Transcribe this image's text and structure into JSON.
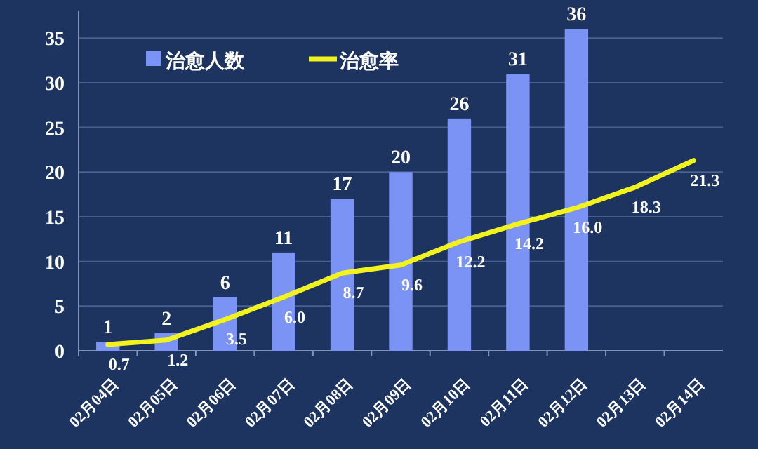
{
  "chart_data": {
    "type": "bar",
    "categories": [
      "02月04日",
      "02月05日",
      "02月06日",
      "02月07日",
      "02月08日",
      "02月09日",
      "02月10日",
      "02月11日",
      "02月12日",
      "02月13日",
      "02月14日"
    ],
    "series": [
      {
        "name": "治愈人数",
        "color": "#7b93f5",
        "values": [
          1,
          2,
          6,
          11,
          17,
          20,
          26,
          31,
          36,
          null,
          null
        ]
      },
      {
        "name": "治愈率",
        "type": "line",
        "color": "#f2f21e",
        "values": [
          0.7,
          1.2,
          3.5,
          6.0,
          8.7,
          9.6,
          12.2,
          14.2,
          16.0,
          18.3,
          21.3
        ],
        "value_labels": [
          "0.7",
          "1.2",
          "3.5",
          "6.0",
          "8.7",
          "9.6",
          "12.2",
          "14.2",
          "16.0",
          "18.3",
          "21.3"
        ]
      }
    ],
    "ylim": [
      0,
      38
    ],
    "yticks": [
      0,
      5,
      10,
      15,
      20,
      25,
      30,
      35
    ],
    "grid": "y",
    "legend": "top left",
    "data_labels": true,
    "marker": "none",
    "line_style": "solid"
  }
}
